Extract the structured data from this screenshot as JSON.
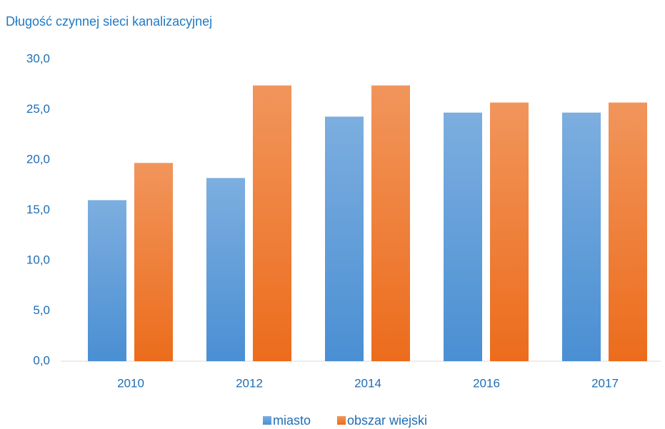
{
  "chart_data": {
    "type": "bar",
    "title": "Długość czynnej sieci kanalizacyjnej",
    "categories": [
      "2010",
      "2012",
      "2014",
      "2016",
      "2017"
    ],
    "series": [
      {
        "name": "miasto",
        "color": "#4a8fd3",
        "values": [
          16.0,
          18.2,
          24.3,
          24.7,
          24.7
        ]
      },
      {
        "name": "obszar wiejski",
        "color": "#ec6c1c",
        "values": [
          19.7,
          27.4,
          27.4,
          25.7,
          25.7
        ]
      }
    ],
    "ylim": [
      0,
      30
    ],
    "yticks": [
      {
        "value": 0,
        "label": "0,0"
      },
      {
        "value": 5,
        "label": "5,0"
      },
      {
        "value": 10,
        "label": "10,0"
      },
      {
        "value": 15,
        "label": "15,0"
      },
      {
        "value": 20,
        "label": "20,0"
      },
      {
        "value": 25,
        "label": "25,0"
      },
      {
        "value": 30,
        "label": "30,0"
      }
    ],
    "grid": false,
    "legend": "bottom"
  }
}
